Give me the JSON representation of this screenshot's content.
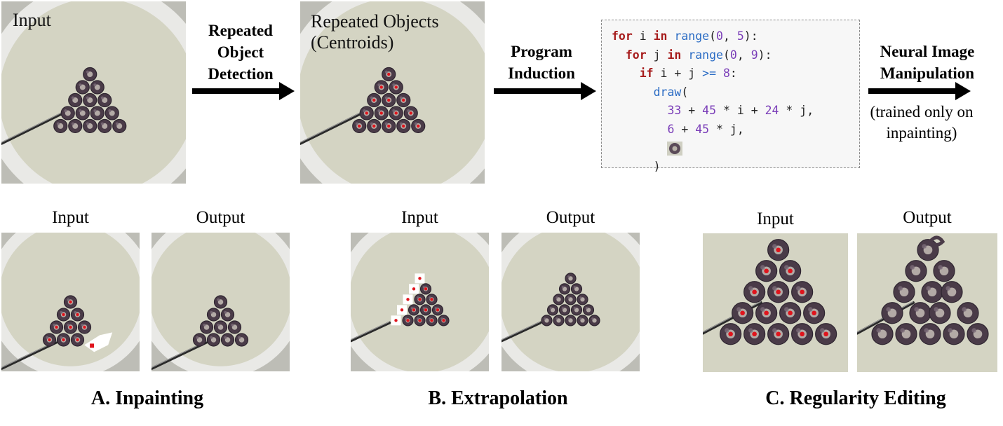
{
  "top": {
    "input_label": "Input",
    "step1": "Repeated\nObject\nDetection",
    "repeated_label": "Repeated Objects\n(Centroids)",
    "step2": "Program\nInduction",
    "code": {
      "l1": [
        "for",
        " i ",
        "in",
        " ",
        "range",
        "(",
        "0",
        ", ",
        "5",
        "):"
      ],
      "l2": [
        "for",
        " j ",
        "in",
        " ",
        "range",
        "(",
        "0",
        ", ",
        "9",
        "):"
      ],
      "l3": [
        "if",
        " i + j ",
        ">=",
        " ",
        "8",
        ":"
      ],
      "l4": [
        "draw",
        "("
      ],
      "l5": [
        "33",
        " + ",
        "45",
        " * i + ",
        "24",
        " * j,"
      ],
      "l6": [
        "6",
        " + ",
        "45",
        " * j,"
      ],
      "l8": ")"
    },
    "step3": "Neural Image\nManipulation",
    "step3_note": "(trained only on\ninpainting)"
  },
  "bottom": {
    "a_input": "Input",
    "a_output": "Output",
    "a_title": "A. Inpainting",
    "b_input": "Input",
    "b_output": "Output",
    "b_title": "B. Extrapolation",
    "c_input": "Input",
    "c_output": "Output",
    "c_title": "C. Regularity Editing"
  },
  "colors": {
    "milk": "#d4d4c3",
    "plate": "#e9e9e6",
    "cereal": "#4a3b48",
    "centroid": "#e0141c",
    "keyword": "#a71d1d",
    "function": "#2b6cc4",
    "number": "#7a3db8"
  }
}
